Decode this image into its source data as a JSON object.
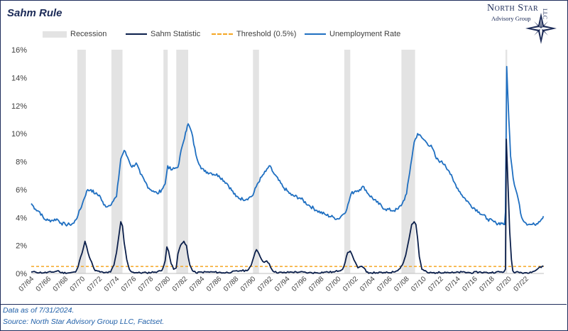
{
  "footer": {
    "note": "Data as of 7/31/2024.",
    "source": "Source: North Star Advisory Group LLC, Factset."
  },
  "logo": {
    "brand": "North Star",
    "sub": "Advisory Group",
    "llc": "LLC"
  },
  "colors": {
    "recession": "#e3e3e3",
    "sahm": "#0b1f4b",
    "threshold": "#f5a623",
    "unemployment": "#1f6fc1",
    "axis_text": "#404040"
  },
  "chart_data": {
    "type": "line",
    "title": "Sahm Rule",
    "xlabel": "",
    "ylabel": "",
    "ylim": [
      0,
      16
    ],
    "xlim": [
      1964.5,
      2024.6
    ],
    "yticks": [
      "0%",
      "2%",
      "4%",
      "6%",
      "8%",
      "10%",
      "12%",
      "14%",
      "16%"
    ],
    "xticks": [
      "07/64",
      "07/66",
      "07/68",
      "07/70",
      "07/72",
      "07/74",
      "07/76",
      "07/78",
      "07/80",
      "07/82",
      "07/84",
      "07/86",
      "07/88",
      "07/90",
      "07/92",
      "07/94",
      "07/96",
      "07/98",
      "07/00",
      "07/02",
      "07/04",
      "07/06",
      "07/08",
      "07/10",
      "07/12",
      "07/14",
      "07/16",
      "07/18",
      "07/20",
      "07/22"
    ],
    "legend": [
      {
        "name": "Recession",
        "kind": "band"
      },
      {
        "name": "Sahm Statistic",
        "kind": "line"
      },
      {
        "name": "Threshold (0.5%)",
        "kind": "dashed"
      },
      {
        "name": "Unemployment Rate",
        "kind": "line"
      }
    ],
    "legend_position": "top",
    "recessions": [
      [
        1969.9,
        1970.9
      ],
      [
        1973.9,
        1975.2
      ],
      [
        1980.0,
        1980.5
      ],
      [
        1981.5,
        1982.9
      ],
      [
        1990.5,
        1991.2
      ],
      [
        2001.2,
        2001.9
      ],
      [
        2007.9,
        2009.5
      ],
      [
        2020.1,
        2020.3
      ]
    ],
    "threshold": 0.5,
    "series": [
      {
        "name": "Unemployment Rate",
        "x": [
          1964.5,
          1965.0,
          1965.5,
          1966.0,
          1966.5,
          1967.0,
          1967.5,
          1968.0,
          1968.5,
          1969.0,
          1969.5,
          1970.0,
          1970.5,
          1971.0,
          1971.5,
          1972.0,
          1972.5,
          1973.0,
          1973.5,
          1974.0,
          1974.5,
          1975.0,
          1975.4,
          1975.8,
          1976.3,
          1976.8,
          1977.3,
          1977.8,
          1978.3,
          1978.8,
          1979.3,
          1979.8,
          1980.2,
          1980.5,
          1980.9,
          1981.3,
          1981.7,
          1982.2,
          1982.6,
          1982.9,
          1983.3,
          1983.8,
          1984.3,
          1984.8,
          1985.5,
          1986.5,
          1987.5,
          1988.5,
          1989.3,
          1990.0,
          1990.5,
          1991.0,
          1991.5,
          1992.0,
          1992.4,
          1993.0,
          1994.0,
          1995.0,
          1996.0,
          1997.0,
          1998.0,
          1999.0,
          2000.0,
          2000.5,
          2001.0,
          2001.5,
          2002.0,
          2002.5,
          2003.0,
          2003.5,
          2004.0,
          2005.0,
          2006.0,
          2007.0,
          2007.5,
          2008.0,
          2008.5,
          2009.0,
          2009.4,
          2009.8,
          2010.3,
          2010.8,
          2011.5,
          2012.0,
          2012.5,
          2013.0,
          2013.5,
          2014.0,
          2015.0,
          2016.0,
          2017.0,
          2018.0,
          2019.0,
          2019.8,
          2020.0,
          2020.1,
          2020.25,
          2020.35,
          2020.5,
          2020.7,
          2021.0,
          2021.3,
          2021.6,
          2022.0,
          2022.5,
          2023.0,
          2023.5,
          2024.0,
          2024.55
        ],
        "values": [
          5.0,
          4.6,
          4.4,
          3.9,
          3.8,
          3.8,
          3.9,
          3.6,
          3.5,
          3.5,
          3.6,
          4.2,
          5.0,
          5.9,
          6.0,
          5.7,
          5.6,
          4.9,
          4.8,
          5.1,
          5.5,
          8.2,
          8.8,
          8.3,
          7.6,
          7.9,
          7.1,
          6.6,
          6.1,
          5.9,
          5.7,
          6.0,
          6.4,
          7.7,
          7.4,
          7.5,
          7.6,
          9.1,
          10.1,
          10.7,
          10.1,
          8.5,
          7.7,
          7.3,
          7.2,
          7.0,
          6.4,
          5.5,
          5.3,
          5.4,
          5.6,
          6.4,
          6.9,
          7.3,
          7.7,
          7.1,
          6.2,
          5.6,
          5.4,
          4.9,
          4.5,
          4.2,
          4.0,
          3.9,
          4.2,
          4.6,
          5.7,
          5.9,
          6.0,
          6.2,
          5.7,
          5.1,
          4.6,
          4.5,
          4.6,
          5.0,
          5.7,
          7.8,
          9.4,
          10.0,
          9.7,
          9.4,
          9.0,
          8.2,
          8.0,
          7.8,
          7.3,
          6.6,
          5.6,
          4.9,
          4.4,
          3.9,
          3.6,
          3.6,
          3.5,
          4.4,
          14.8,
          13.2,
          11.0,
          8.4,
          6.8,
          6.0,
          5.3,
          4.0,
          3.6,
          3.5,
          3.5,
          3.7,
          4.1
        ]
      },
      {
        "name": "Sahm Statistic",
        "x": [
          1964.5,
          1965.0,
          1966.0,
          1967.0,
          1967.7,
          1968.0,
          1969.0,
          1969.7,
          1970.0,
          1970.3,
          1970.6,
          1970.8,
          1971.0,
          1971.3,
          1971.7,
          1972.0,
          1973.0,
          1973.8,
          1974.2,
          1974.5,
          1974.8,
          1975.0,
          1975.2,
          1975.4,
          1975.7,
          1976.0,
          1976.3,
          1977.0,
          1978.0,
          1979.0,
          1979.8,
          1980.2,
          1980.4,
          1980.6,
          1980.9,
          1981.2,
          1981.5,
          1981.7,
          1982.0,
          1982.4,
          1982.7,
          1982.9,
          1983.1,
          1983.4,
          1983.8,
          1984.5,
          1986.0,
          1987.0,
          1988.0,
          1989.0,
          1989.8,
          1990.3,
          1990.6,
          1990.9,
          1991.2,
          1991.5,
          1991.8,
          1992.1,
          1992.4,
          1992.7,
          1993.0,
          1994.0,
          1995.0,
          1996.0,
          1997.0,
          1998.0,
          1999.0,
          2000.0,
          2001.0,
          2001.3,
          2001.6,
          2001.9,
          2002.2,
          2002.5,
          2002.8,
          2003.1,
          2003.5,
          2003.8,
          2004.2,
          2005.0,
          2006.0,
          2007.0,
          2007.6,
          2008.0,
          2008.4,
          2008.8,
          2009.1,
          2009.4,
          2009.6,
          2009.8,
          2010.0,
          2010.3,
          2011.0,
          2012.0,
          2013.0,
          2014.0,
          2015.0,
          2016.0,
          2017.0,
          2018.0,
          2019.0,
          2019.9,
          2020.1,
          2020.2,
          2020.3,
          2020.45,
          2020.6,
          2020.8,
          2020.95,
          2021.2,
          2021.6,
          2022.0,
          2022.6,
          2023.0,
          2023.6,
          2024.0,
          2024.55
        ],
        "values": [
          0.1,
          0.1,
          0.05,
          0.1,
          0.2,
          0.05,
          0.05,
          0.1,
          0.5,
          1.2,
          1.8,
          2.3,
          1.9,
          1.2,
          0.6,
          0.2,
          0.05,
          0.1,
          0.6,
          1.5,
          2.8,
          3.7,
          3.4,
          2.2,
          1.0,
          0.3,
          0.1,
          0.05,
          0.05,
          0.1,
          0.2,
          0.9,
          1.9,
          1.6,
          0.7,
          0.3,
          0.4,
          1.4,
          2.0,
          2.3,
          2.0,
          1.2,
          0.6,
          0.2,
          0.05,
          0.1,
          0.1,
          0.05,
          0.1,
          0.2,
          0.2,
          0.6,
          1.2,
          1.7,
          1.4,
          1.0,
          0.8,
          0.9,
          0.7,
          0.3,
          0.1,
          0.05,
          0.1,
          0.1,
          0.05,
          0.05,
          0.1,
          0.1,
          0.3,
          0.8,
          1.5,
          1.6,
          1.2,
          0.8,
          0.4,
          0.5,
          0.4,
          0.1,
          0.05,
          0.05,
          0.05,
          0.1,
          0.3,
          0.6,
          1.3,
          2.5,
          3.5,
          3.7,
          3.5,
          2.5,
          1.2,
          0.3,
          0.05,
          0.05,
          0.1,
          0.05,
          0.1,
          0.05,
          0.1,
          0.05,
          0.1,
          0.1,
          0.3,
          9.6,
          8.0,
          5.5,
          3.0,
          1.0,
          0.2,
          0.05,
          0.1,
          0.05,
          0.05,
          0.1,
          0.2,
          0.4,
          0.53
        ]
      }
    ]
  }
}
